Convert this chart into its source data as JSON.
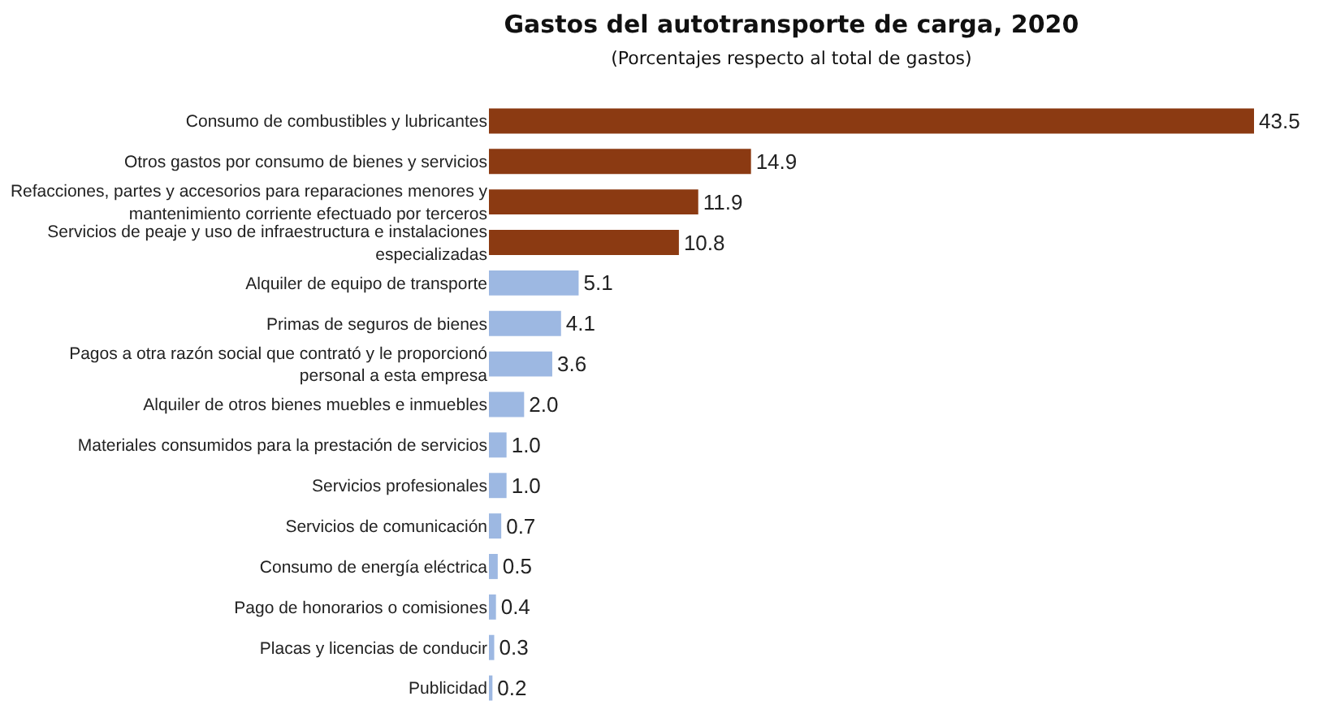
{
  "chart_data": {
    "type": "bar",
    "orientation": "horizontal",
    "title": "Gastos del autotransporte de carga, 2020",
    "subtitle": "(Porcentajes respecto al total de gastos)",
    "categories": [
      "Consumo de combustibles y lubricantes",
      "Otros gastos por consumo de bienes y servicios",
      "Refacciones, partes y accesorios para reparaciones menores y mantenimiento corriente efectuado por terceros",
      "Servicios de peaje y uso de infraestructura e instalaciones especializadas",
      "Alquiler de equipo de transporte",
      "Primas de seguros de bienes",
      "Pagos a otra razón social que contrató y le proporcionó personal a esta empresa",
      "Alquiler de otros bienes muebles e inmuebles",
      "Materiales consumidos para la prestación de servicios",
      "Servicios profesionales",
      "Servicios de comunicación",
      "Consumo de energía eléctrica",
      "Pago de honorarios o comisiones",
      "Placas y licencias de conducir",
      "Publicidad"
    ],
    "values": [
      43.5,
      14.9,
      11.9,
      10.8,
      5.1,
      4.1,
      3.6,
      2.0,
      1.0,
      1.0,
      0.7,
      0.5,
      0.4,
      0.3,
      0.2
    ],
    "value_labels": [
      "43.5",
      "14.9",
      "11.9",
      "10.8",
      "5.1",
      "4.1",
      "3.6",
      "2.0",
      "1.0",
      "1.0",
      "0.7",
      "0.5",
      "0.4",
      "0.3",
      "0.2"
    ],
    "colors": [
      "#8b3a12",
      "#8b3a12",
      "#8b3a12",
      "#8b3a12",
      "#9db8e2",
      "#9db8e2",
      "#9db8e2",
      "#9db8e2",
      "#9db8e2",
      "#9db8e2",
      "#9db8e2",
      "#9db8e2",
      "#9db8e2",
      "#9db8e2",
      "#9db8e2"
    ],
    "tick_labels": "y"
  }
}
